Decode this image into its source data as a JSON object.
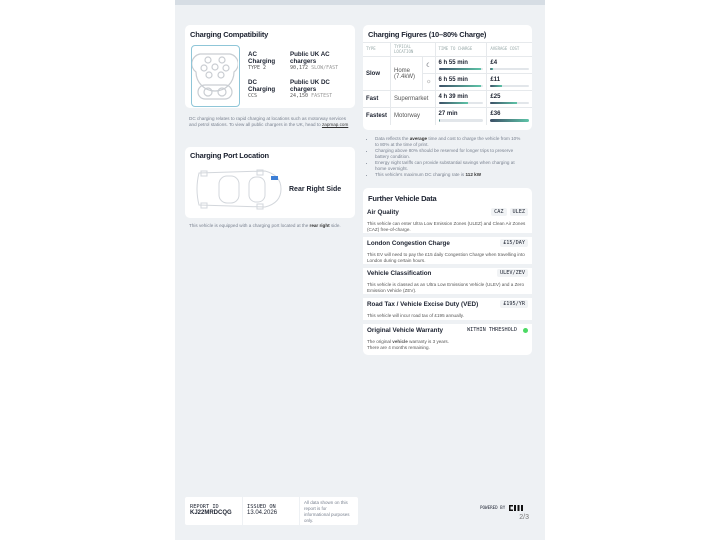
{
  "compat": {
    "title": "Charging Compatibility",
    "ac": {
      "label": "AC Charging",
      "type": "TYPE 2",
      "public_label": "Public UK AC chargers",
      "count": "90,172",
      "speed": "SLOW/FAST"
    },
    "dc": {
      "label": "DC Charging",
      "type": "CCS",
      "public_label": "Public UK DC chargers",
      "count": "24,150",
      "speed": "FASTEST"
    },
    "note": "DC charging relates to rapid charging at locations such as motorway services and petrol stations. To view all public chargers in the UK, head to ",
    "note_link": "zapmap.com"
  },
  "port": {
    "title": "Charging Port Location",
    "location": "Rear Right Side",
    "note": "This vehicle is equipped with a charging port located at the ",
    "note_bold": "rear right",
    "note_end": " side."
  },
  "figures": {
    "title": "Charging Figures (10–80% Charge)",
    "headers": [
      "TYPE",
      "TYPICAL LOCATION",
      "TIME TO CHARGE",
      "AVERAGE COST"
    ],
    "rows": [
      {
        "type": "Slow",
        "location": "Home (7.4kW)",
        "icon": "moon-icon",
        "time": "6 h 55 min",
        "time_pct": 95,
        "cost": "£4",
        "cost_pct": 8
      },
      {
        "icon": "sun-icon",
        "time": "6 h 55 min",
        "time_pct": 95,
        "cost": "£11",
        "cost_pct": 30
      },
      {
        "type": "Fast",
        "location": "Supermarket",
        "time": "4 h 39 min",
        "time_pct": 65,
        "cost": "£25",
        "cost_pct": 70
      },
      {
        "type": "Fastest",
        "location": "Motorway",
        "time": "27 min",
        "time_pct": 4,
        "cost": "£36",
        "cost_pct": 100
      }
    ],
    "bullets": [
      [
        "Data reflects the ",
        "average",
        " time and cost to charge the vehicle from 10% to 80% at the time of print."
      ],
      [
        "Charging above 80% should be reserved for longer trips to preserve battery condition.",
        "",
        ""
      ],
      [
        "Energy night tariffs can provide substantial savings when charging at home overnight.",
        "",
        ""
      ],
      [
        "This vehicle's maximum DC charging rate is ",
        "112 kW",
        ""
      ]
    ]
  },
  "further": {
    "title": "Further Vehicle Data",
    "items": [
      {
        "title": "Air Quality",
        "badges": [
          "CAZ",
          "ULEZ"
        ],
        "desc": "This vehicle can enter Ultra Low Emission Zones (ULEZ) and Clean Air Zones (CAZ) free-of-charge."
      },
      {
        "title": "London Congestion Charge",
        "badges": [
          "£15/DAY"
        ],
        "desc": "This EV will need to pay the £15 daily Congestion Charge when travelling into London during certain hours."
      },
      {
        "title": "Vehicle Classification",
        "badges": [
          "ULEV/ZEV"
        ],
        "desc": "This vehicle is classed as an Ultra Low Emissions Vehicle (ULEV) and a Zero Emission Vehicle (ZEV)."
      },
      {
        "title": "Road Tax / Vehicle Excise Duty (VED)",
        "badges": [
          "£195/YR"
        ],
        "desc": "This vehicle will incur road tax of £195 annually."
      },
      {
        "title": "Original Vehicle Warranty",
        "badges": [
          "WITHIN THRESHOLD"
        ],
        "desc1a": "The original ",
        "desc1b": "vehicle",
        "desc1c": " warranty is 3 years.",
        "desc2": "There are 4 months remaining.",
        "status_color": "#4cd964"
      }
    ]
  },
  "footer": {
    "report_label": "REPORT ID",
    "report_id": "KJ22MRDCQG",
    "issued_label": "ISSUED ON",
    "issued": "13.04.2026",
    "disclaimer": "All data shown on this report is for informational purposes only.",
    "powered": "POWERED BY",
    "page": "2/3"
  }
}
